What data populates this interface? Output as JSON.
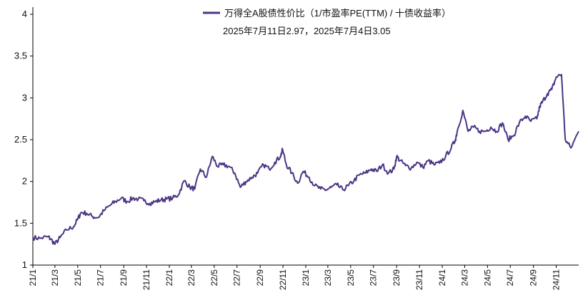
{
  "chart_data": {
    "type": "line",
    "title": "",
    "xlabel": "",
    "ylabel": "",
    "ylim": [
      1,
      4
    ],
    "yticks": [
      "1",
      "1.5",
      "2",
      "2.5",
      "3",
      "3.5",
      "4"
    ],
    "xticks": [
      "21/1",
      "21/3",
      "21/5",
      "21/7",
      "21/9",
      "21/11",
      "22/1",
      "22/3",
      "22/5",
      "22/7",
      "22/9",
      "22/11",
      "23/1",
      "23/3",
      "23/5",
      "23/7",
      "23/9",
      "23/11",
      "24/1",
      "24/3",
      "24/5",
      "24/7",
      "24/9",
      "24/11"
    ],
    "grid": false,
    "legend_position": "top",
    "annotation": "2025年7月11日2.97，2025年7月4日3.05",
    "series": [
      {
        "name": "万得全A股债性价比（1/市盈率PE(TTM) / 十债收益率）",
        "color": "#4b3585",
        "x": [
          "2021-01-01",
          "2021-01-20",
          "2021-02-10",
          "2021-02-18",
          "2021-03-01",
          "2021-03-15",
          "2021-04-01",
          "2021-04-20",
          "2021-05-01",
          "2021-05-10",
          "2021-05-25",
          "2021-06-10",
          "2021-06-25",
          "2021-07-10",
          "2021-07-28",
          "2021-08-10",
          "2021-08-25",
          "2021-09-10",
          "2021-09-25",
          "2021-10-10",
          "2021-10-25",
          "2021-11-10",
          "2021-11-25",
          "2021-12-10",
          "2021-12-25",
          "2022-01-10",
          "2022-01-25",
          "2022-02-10",
          "2022-02-25",
          "2022-03-10",
          "2022-03-25",
          "2022-04-10",
          "2022-04-26",
          "2022-05-10",
          "2022-05-25",
          "2022-06-10",
          "2022-06-25",
          "2022-07-10",
          "2022-07-25",
          "2022-08-10",
          "2022-08-25",
          "2022-09-10",
          "2022-09-25",
          "2022-10-10",
          "2022-10-25",
          "2022-10-31",
          "2022-11-10",
          "2022-11-25",
          "2022-12-10",
          "2022-12-25",
          "2023-01-10",
          "2023-01-25",
          "2023-02-10",
          "2023-02-25",
          "2023-03-10",
          "2023-03-25",
          "2023-04-10",
          "2023-04-25",
          "2023-05-10",
          "2023-05-25",
          "2023-06-10",
          "2023-06-25",
          "2023-07-10",
          "2023-07-25",
          "2023-08-10",
          "2023-08-25",
          "2023-09-01",
          "2023-09-10",
          "2023-09-25",
          "2023-10-10",
          "2023-10-25",
          "2023-11-10",
          "2023-11-25",
          "2023-12-10",
          "2023-12-25",
          "2024-01-10",
          "2024-01-25",
          "2024-02-05",
          "2024-02-10",
          "2024-02-25",
          "2024-03-10",
          "2024-03-25",
          "2024-04-10",
          "2024-04-25",
          "2024-05-10",
          "2024-05-25",
          "2024-06-10",
          "2024-06-25",
          "2024-07-10",
          "2024-07-25",
          "2024-08-10",
          "2024-08-25",
          "2024-09-10",
          "2024-09-18",
          "2024-09-25",
          "2024-10-08",
          "2024-10-20",
          "2024-11-01",
          "2024-11-15",
          "2024-11-25",
          "2024-12-10",
          "2024-12-31"
        ],
        "y": [
          1.33,
          1.32,
          1.34,
          1.31,
          1.25,
          1.33,
          1.42,
          1.46,
          1.55,
          1.63,
          1.62,
          1.58,
          1.57,
          1.65,
          1.72,
          1.76,
          1.8,
          1.76,
          1.8,
          1.79,
          1.77,
          1.74,
          1.76,
          1.78,
          1.79,
          1.8,
          1.84,
          2.01,
          1.93,
          1.91,
          2.15,
          2.05,
          2.3,
          2.18,
          2.2,
          2.18,
          2.1,
          1.93,
          2.0,
          2.05,
          2.1,
          2.2,
          2.15,
          2.23,
          2.3,
          2.38,
          2.2,
          2.1,
          1.98,
          2.12,
          2.05,
          1.95,
          1.91,
          1.9,
          1.93,
          1.96,
          1.9,
          1.95,
          2.01,
          2.08,
          2.1,
          2.15,
          2.12,
          2.2,
          2.1,
          2.15,
          2.3,
          2.25,
          2.19,
          2.16,
          2.23,
          2.17,
          2.25,
          2.2,
          2.22,
          2.3,
          2.4,
          2.5,
          2.6,
          2.85,
          2.6,
          2.65,
          2.6,
          2.6,
          2.65,
          2.6,
          2.7,
          2.5,
          2.55,
          2.7,
          2.78,
          2.72,
          2.75,
          2.9,
          2.95,
          3.05,
          3.1,
          3.25,
          3.28,
          2.5,
          2.4,
          2.6
        ]
      }
    ]
  }
}
